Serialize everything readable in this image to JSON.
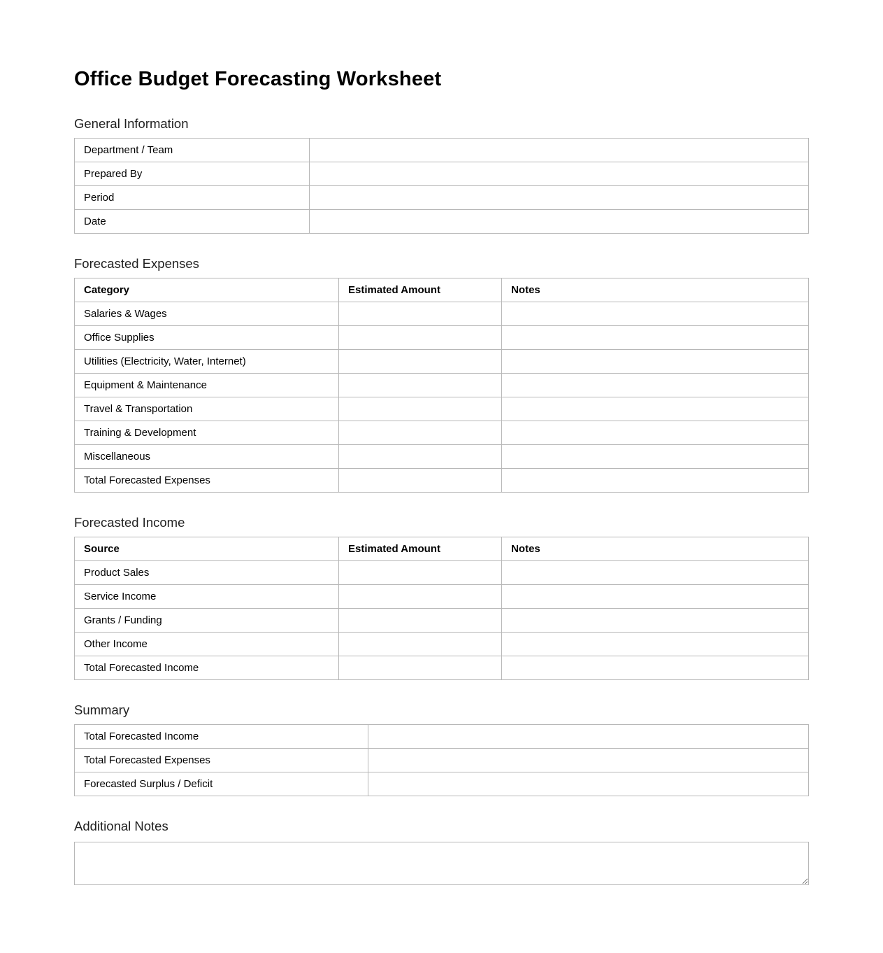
{
  "page": {
    "title": "Office Budget Forecasting Worksheet"
  },
  "general_info": {
    "heading": "General Information",
    "rows": [
      {
        "label": "Department / Team",
        "value": ""
      },
      {
        "label": "Prepared By",
        "value": ""
      },
      {
        "label": "Period",
        "value": ""
      },
      {
        "label": "Date",
        "value": ""
      }
    ]
  },
  "forecasted_expenses": {
    "heading": "Forecasted Expenses",
    "columns": {
      "category": "Category",
      "amount": "Estimated Amount",
      "notes": "Notes"
    },
    "rows": [
      {
        "category": "Salaries & Wages",
        "amount": "",
        "notes": ""
      },
      {
        "category": "Office Supplies",
        "amount": "",
        "notes": ""
      },
      {
        "category": "Utilities (Electricity, Water, Internet)",
        "amount": "",
        "notes": ""
      },
      {
        "category": "Equipment & Maintenance",
        "amount": "",
        "notes": ""
      },
      {
        "category": "Travel & Transportation",
        "amount": "",
        "notes": ""
      },
      {
        "category": "Training & Development",
        "amount": "",
        "notes": ""
      },
      {
        "category": "Miscellaneous",
        "amount": "",
        "notes": ""
      },
      {
        "category": "Total Forecasted Expenses",
        "amount": "",
        "notes": ""
      }
    ]
  },
  "forecasted_income": {
    "heading": "Forecasted Income",
    "columns": {
      "source": "Source",
      "amount": "Estimated Amount",
      "notes": "Notes"
    },
    "rows": [
      {
        "source": "Product Sales",
        "amount": "",
        "notes": ""
      },
      {
        "source": "Service Income",
        "amount": "",
        "notes": ""
      },
      {
        "source": "Grants / Funding",
        "amount": "",
        "notes": ""
      },
      {
        "source": "Other Income",
        "amount": "",
        "notes": ""
      },
      {
        "source": "Total Forecasted Income",
        "amount": "",
        "notes": ""
      }
    ]
  },
  "summary": {
    "heading": "Summary",
    "rows": [
      {
        "label": "Total Forecasted Income",
        "value": ""
      },
      {
        "label": "Total Forecasted Expenses",
        "value": ""
      },
      {
        "label": "Forecasted Surplus / Deficit",
        "value": ""
      }
    ]
  },
  "additional_notes": {
    "heading": "Additional Notes",
    "value": ""
  },
  "colors": {
    "table_border": "#b7b7b7",
    "text": "#000000",
    "heading_text": "#1f1f1f",
    "background": "#ffffff"
  }
}
